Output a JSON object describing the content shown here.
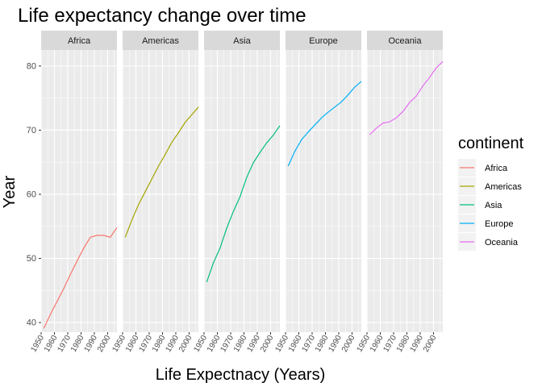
{
  "chart_data": {
    "type": "line",
    "title": "Life expectancy change over time",
    "xlabel": "Life Expectnacy (Years)",
    "ylabel": "Year",
    "facet_by": "continent",
    "xlim": [
      1950,
      2007
    ],
    "ylim": [
      38.5,
      82.5
    ],
    "x_ticks": [
      1950,
      1960,
      1970,
      1980,
      1990,
      2000
    ],
    "y_ticks": [
      40,
      50,
      60,
      70,
      80
    ],
    "grid": true,
    "legend": {
      "title": "continent",
      "position": "right"
    },
    "x": [
      1952,
      1957,
      1962,
      1967,
      1972,
      1977,
      1982,
      1987,
      1992,
      1997,
      2002,
      2007
    ],
    "series": [
      {
        "name": "Africa",
        "color": "#F8766D",
        "values": [
          39.1,
          41.3,
          43.3,
          45.3,
          47.5,
          49.6,
          51.6,
          53.3,
          53.6,
          53.6,
          53.3,
          54.8
        ]
      },
      {
        "name": "Americas",
        "color": "#A3A500",
        "values": [
          53.3,
          56.0,
          58.4,
          60.4,
          62.4,
          64.4,
          66.2,
          68.1,
          69.6,
          71.2,
          72.4,
          73.6
        ]
      },
      {
        "name": "Asia",
        "color": "#00BF7D",
        "values": [
          46.3,
          49.3,
          51.6,
          54.7,
          57.3,
          59.6,
          62.6,
          64.9,
          66.5,
          68.0,
          69.2,
          70.7
        ]
      },
      {
        "name": "Europe",
        "color": "#00B0F6",
        "values": [
          64.4,
          66.7,
          68.5,
          69.7,
          70.8,
          71.9,
          72.8,
          73.6,
          74.4,
          75.5,
          76.7,
          77.6
        ]
      },
      {
        "name": "Oceania",
        "color": "#E76BF3",
        "values": [
          69.3,
          70.3,
          71.1,
          71.3,
          71.9,
          72.9,
          74.3,
          75.3,
          76.9,
          78.2,
          79.7,
          80.7
        ]
      }
    ]
  }
}
